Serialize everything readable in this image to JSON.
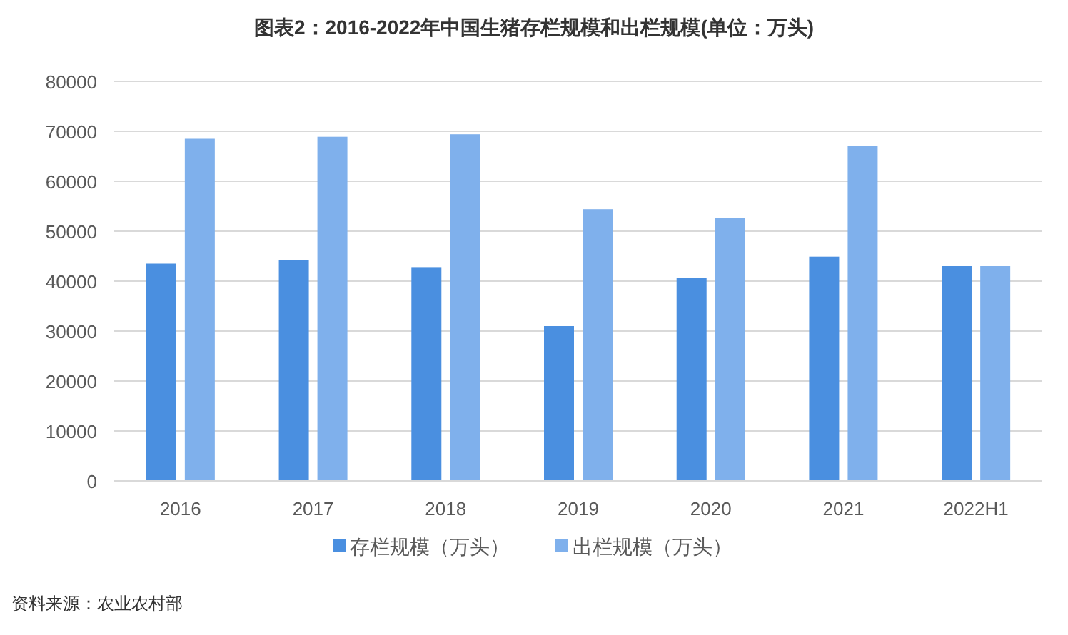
{
  "chart_data": {
    "type": "bar",
    "title": "图表2：2016-2022年中国生猪存栏规模和出栏规模(单位：万头)",
    "categories": [
      "2016",
      "2017",
      "2018",
      "2019",
      "2020",
      "2021",
      "2022H1"
    ],
    "series": [
      {
        "name": "存栏规模（万头）",
        "color": "#4a8fe0",
        "values": [
          43500,
          44200,
          42800,
          31000,
          40700,
          44900,
          43000
        ]
      },
      {
        "name": "出栏规模（万头）",
        "color": "#7fb0ec",
        "values": [
          68500,
          68900,
          69400,
          54400,
          52700,
          67100,
          43000
        ]
      }
    ],
    "ylim": [
      0,
      80000
    ],
    "yticks": [
      0,
      10000,
      20000,
      30000,
      40000,
      50000,
      60000,
      70000,
      80000
    ],
    "grid": "y",
    "legend": "bottom",
    "annotations": [
      "资料来源：农业农村部"
    ]
  }
}
